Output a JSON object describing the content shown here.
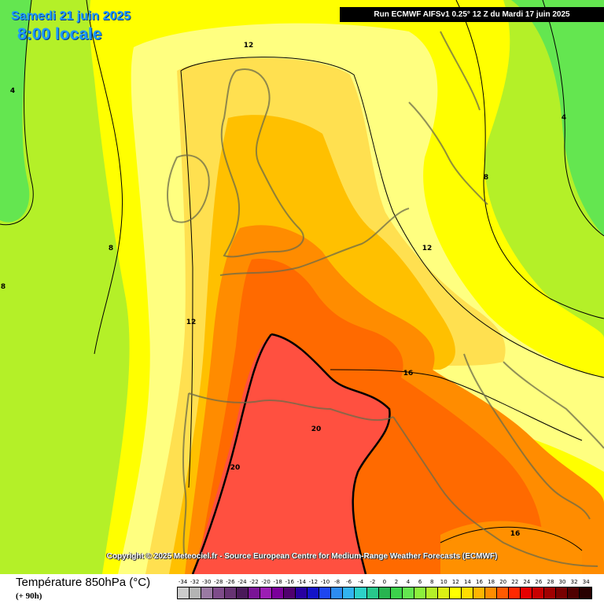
{
  "header": {
    "date": "Samedi 21 juin 2025",
    "time": "8:00 locale",
    "run": "Run ECMWF AIFSv1 0.25° 12 Z du Mardi 17 juin 2025"
  },
  "copyright": "Copyright © 2025 Meteociel.fr - Source European Centre for Medium-Range Weather Forecasts (ECMWF)",
  "legend": {
    "title": "Température 850hPa (°C)",
    "subtitle": "(+ 90h)",
    "values": [
      "-34",
      "-32",
      "-30",
      "-28",
      "-26",
      "-24",
      "-22",
      "-20",
      "-18",
      "-16",
      "-14",
      "-12",
      "-10",
      "-8",
      "-6",
      "-4",
      "-2",
      "0",
      "2",
      "4",
      "6",
      "8",
      "10",
      "12",
      "14",
      "16",
      "18",
      "20",
      "22",
      "24",
      "26",
      "28",
      "30",
      "32",
      "34"
    ],
    "colors": [
      "#cccccc",
      "#b4b4b4",
      "#9a7aa3",
      "#7e4c8a",
      "#663373",
      "#4a1a5a",
      "#7a1496",
      "#9c1eb4",
      "#7a009a",
      "#50006e",
      "#2800a0",
      "#1414c8",
      "#1e46f0",
      "#2d8cf0",
      "#32b4f0",
      "#2dd2c8",
      "#28c88c",
      "#28b450",
      "#3cd24b",
      "#64e650",
      "#8cf03c",
      "#b4f028",
      "#dcf014",
      "#ffff00",
      "#ffdc00",
      "#ffb400",
      "#ff8c00",
      "#ff5a00",
      "#ff2800",
      "#e60000",
      "#c80000",
      "#a00000",
      "#780000",
      "#500000",
      "#280000"
    ]
  },
  "isotherm_labels": [
    "12",
    "4",
    "4",
    "8",
    "8",
    "8",
    "12",
    "12",
    "16",
    "20",
    "20",
    "16"
  ]
}
